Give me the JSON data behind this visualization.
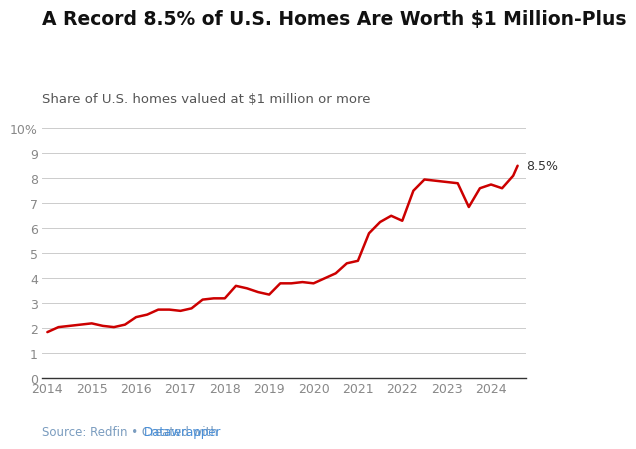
{
  "title": "A Record 8.5% of U.S. Homes Are Worth $1 Million-Plus",
  "subtitle": "Share of U.S. homes valued at $1 million or more",
  "source_text": "Source: Redfin • Created with ",
  "source_link_text": "Datawrapper",
  "source_link_color": "#4a90d9",
  "source_text_color": "#7a9cbf",
  "line_color": "#cc0000",
  "line_width": 1.8,
  "background_color": "#ffffff",
  "label_end": "8.5%",
  "ylim": [
    0,
    10
  ],
  "yticks": [
    0,
    1,
    2,
    3,
    4,
    5,
    6,
    7,
    8,
    9,
    10
  ],
  "ytick_labels": [
    "0",
    "1",
    "2",
    "3",
    "4",
    "5",
    "6",
    "7",
    "8",
    "9",
    "10%"
  ],
  "xtick_labels": [
    "2014",
    "2015",
    "2016",
    "2017",
    "2018",
    "2019",
    "2020",
    "2021",
    "2022",
    "2023",
    "2024"
  ],
  "x": [
    2014.0,
    2014.25,
    2014.5,
    2014.75,
    2015.0,
    2015.25,
    2015.5,
    2015.75,
    2016.0,
    2016.25,
    2016.5,
    2016.75,
    2017.0,
    2017.25,
    2017.5,
    2017.75,
    2018.0,
    2018.25,
    2018.5,
    2018.75,
    2019.0,
    2019.25,
    2019.5,
    2019.75,
    2020.0,
    2020.25,
    2020.5,
    2020.75,
    2021.0,
    2021.25,
    2021.5,
    2021.75,
    2022.0,
    2022.25,
    2022.5,
    2022.75,
    2023.0,
    2023.25,
    2023.5,
    2023.75,
    2024.0,
    2024.25,
    2024.5,
    2024.6
  ],
  "y": [
    1.85,
    2.05,
    2.1,
    2.15,
    2.2,
    2.1,
    2.05,
    2.15,
    2.45,
    2.55,
    2.75,
    2.75,
    2.7,
    2.8,
    3.15,
    3.2,
    3.2,
    3.7,
    3.6,
    3.45,
    3.35,
    3.8,
    3.8,
    3.85,
    3.8,
    4.0,
    4.2,
    4.6,
    4.7,
    5.8,
    6.25,
    6.5,
    6.3,
    7.5,
    7.95,
    7.9,
    7.85,
    7.8,
    6.85,
    7.6,
    7.75,
    7.6,
    8.1,
    8.5
  ],
  "title_fontsize": 13.5,
  "subtitle_fontsize": 9.5,
  "tick_fontsize": 9,
  "source_fontsize": 8.5,
  "grid_color": "#cccccc",
  "tick_color": "#888888",
  "spine_color": "#333333",
  "label_color": "#333333"
}
